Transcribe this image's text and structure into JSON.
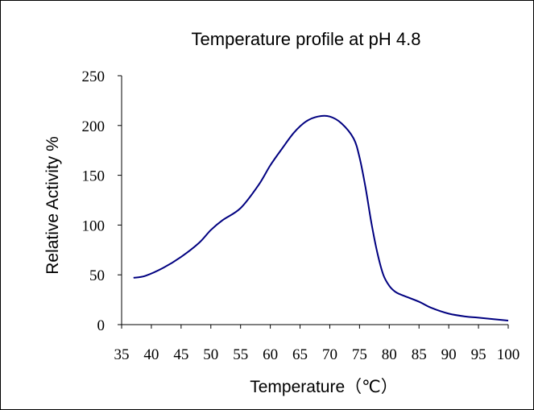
{
  "chart_data": {
    "type": "line",
    "title": "Temperature profile at pH 4.8",
    "xlabel": "Temperature（℃）",
    "ylabel": "Relative  Activity %",
    "xlim": [
      35,
      100
    ],
    "ylim": [
      0,
      250
    ],
    "xticks": [
      "35",
      "40",
      "45",
      "50",
      "55",
      "60",
      "65",
      "70",
      "75",
      "80",
      "85",
      "90",
      "95",
      "100"
    ],
    "yticks": [
      "0",
      "50",
      "100",
      "150",
      "200",
      "250"
    ],
    "grid": false,
    "legend": "none",
    "series": [
      {
        "color": "#000080",
        "x": [
          37,
          39,
          42,
          45,
          48,
          50,
          52,
          55,
          58,
          60,
          62,
          64,
          66,
          68,
          70,
          72,
          74,
          75,
          76,
          77,
          78,
          79,
          80,
          81,
          82,
          85,
          87,
          90,
          93,
          95,
          100
        ],
        "y": [
          47,
          49,
          57,
          68,
          82,
          95,
          105,
          117,
          140,
          160,
          177,
          193,
          204,
          209,
          209,
          202,
          187,
          168,
          138,
          102,
          72,
          50,
          39,
          33,
          30,
          23,
          17,
          11,
          8,
          7,
          4
        ]
      }
    ]
  }
}
